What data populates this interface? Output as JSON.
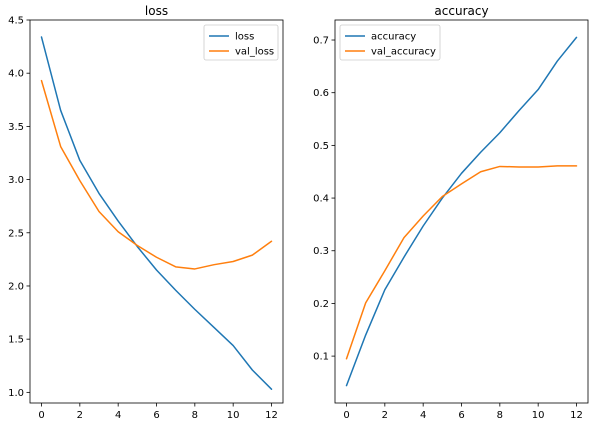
{
  "chart_data": [
    {
      "type": "line",
      "title": "loss",
      "x": [
        0,
        1,
        2,
        3,
        4,
        5,
        6,
        7,
        8,
        9,
        10,
        11,
        12
      ],
      "xlim": [
        -0.6,
        12.6
      ],
      "ylim": [
        0.9,
        4.5
      ],
      "xticks": [
        0,
        2,
        4,
        6,
        8,
        10,
        12
      ],
      "yticks": [
        1.0,
        1.5,
        2.0,
        2.5,
        3.0,
        3.5,
        4.0,
        4.5
      ],
      "xtick_labels": [
        "0",
        "2",
        "4",
        "6",
        "8",
        "10",
        "12"
      ],
      "ytick_labels": [
        "1.0",
        "1.5",
        "2.0",
        "2.5",
        "3.0",
        "3.5",
        "4.0",
        "4.5"
      ],
      "legend_position": "upper right",
      "series": [
        {
          "name": "loss",
          "color": "#1f77b4",
          "values": [
            4.34,
            3.65,
            3.18,
            2.87,
            2.61,
            2.37,
            2.15,
            1.96,
            1.78,
            1.61,
            1.44,
            1.21,
            1.03
          ]
        },
        {
          "name": "val_loss",
          "color": "#ff7f0e",
          "values": [
            3.93,
            3.31,
            2.99,
            2.7,
            2.51,
            2.38,
            2.27,
            2.18,
            2.16,
            2.2,
            2.23,
            2.29,
            2.42
          ]
        }
      ]
    },
    {
      "type": "line",
      "title": "accuracy",
      "x": [
        0,
        1,
        2,
        3,
        4,
        5,
        6,
        7,
        8,
        9,
        10,
        11,
        12
      ],
      "xlim": [
        -0.6,
        12.6
      ],
      "ylim": [
        0.011,
        0.738
      ],
      "xticks": [
        0,
        2,
        4,
        6,
        8,
        10,
        12
      ],
      "yticks": [
        0.1,
        0.2,
        0.3,
        0.4,
        0.5,
        0.6,
        0.7
      ],
      "xtick_labels": [
        "0",
        "2",
        "4",
        "6",
        "8",
        "10",
        "12"
      ],
      "ytick_labels": [
        "0.1",
        "0.2",
        "0.3",
        "0.4",
        "0.5",
        "0.6",
        "0.7"
      ],
      "legend_position": "upper left",
      "series": [
        {
          "name": "accuracy",
          "color": "#1f77b4",
          "values": [
            0.044,
            0.14,
            0.226,
            0.288,
            0.347,
            0.4,
            0.447,
            0.487,
            0.524,
            0.566,
            0.606,
            0.66,
            0.705
          ]
        },
        {
          "name": "val_accuracy",
          "color": "#ff7f0e",
          "values": [
            0.095,
            0.201,
            0.262,
            0.325,
            0.366,
            0.403,
            0.427,
            0.45,
            0.46,
            0.459,
            0.459,
            0.461,
            0.461
          ]
        }
      ]
    }
  ]
}
